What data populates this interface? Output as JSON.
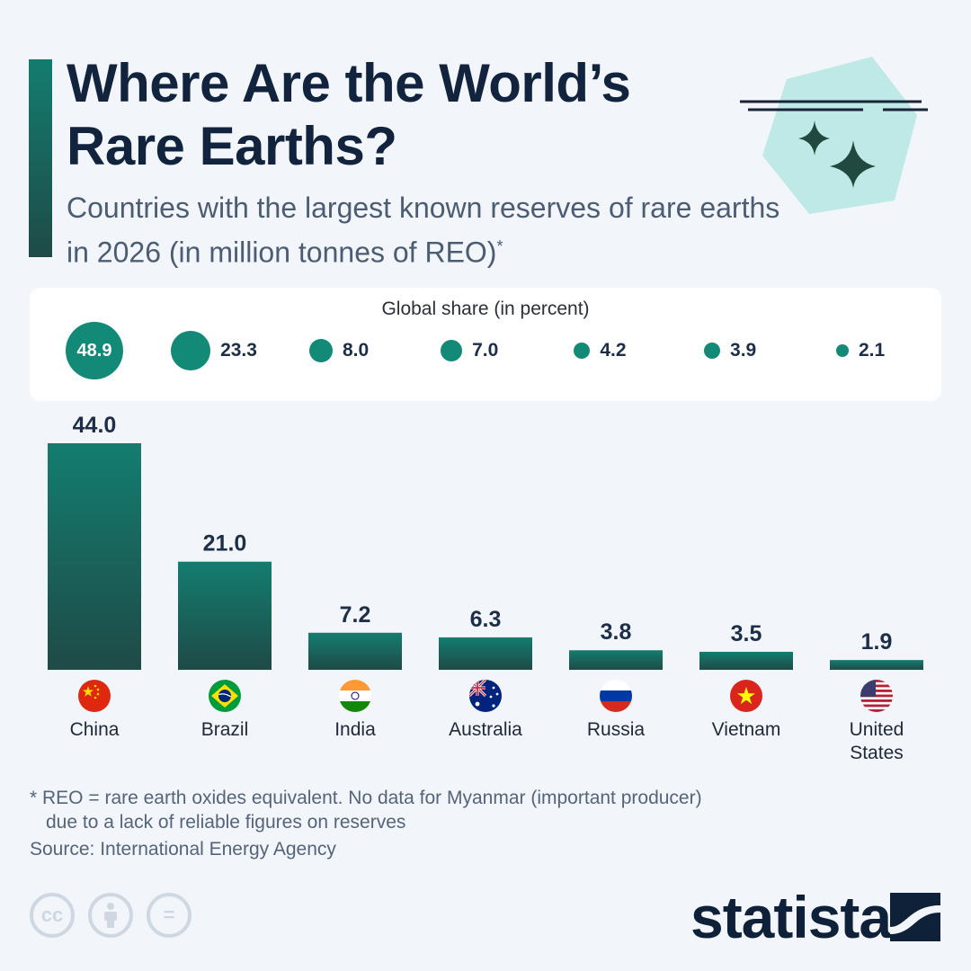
{
  "header": {
    "title": "Where Are the World’s Rare Earths?",
    "subtitle": "Countries with the largest known reserves of rare earths in 2026 (in million tonnes of REO)",
    "subtitle_mark": "*"
  },
  "share_panel": {
    "title": "Global share (in percent)"
  },
  "chart_data": {
    "type": "bar",
    "categories": [
      "China",
      "Brazil",
      "India",
      "Australia",
      "Russia",
      "Vietnam",
      "United States"
    ],
    "values": [
      44.0,
      21.0,
      7.2,
      6.3,
      3.8,
      3.5,
      1.9
    ],
    "value_labels": [
      "44.0",
      "21.0",
      "7.2",
      "6.3",
      "3.8",
      "3.5",
      "1.9"
    ],
    "global_share": [
      48.9,
      23.3,
      8.0,
      7.0,
      4.2,
      3.9,
      2.1
    ],
    "global_share_labels": [
      "48.9",
      "23.3",
      "8.0",
      "7.0",
      "4.2",
      "3.9",
      "2.1"
    ],
    "title": "Where Are the World’s Rare Earths?",
    "xlabel": "",
    "ylabel": "",
    "ylim": [
      0,
      44
    ],
    "grid": false,
    "colors": {
      "bar_top": "#137d6f",
      "bar_bottom": "#1f4a47",
      "dot": "#138a78"
    }
  },
  "flags": [
    "china-flag",
    "brazil-flag",
    "india-flag",
    "australia-flag",
    "russia-flag",
    "vietnam-flag",
    "us-flag"
  ],
  "footer": {
    "footnote_line1": "* REO = rare earth oxides equivalent. No data for Myanmar (important producer)",
    "footnote_line2": "due to a lack of reliable figures on reserves",
    "source": "Source: International Energy Agency",
    "cc_label": "cc",
    "equals_label": "=",
    "brand": "statista"
  },
  "icons": [
    "sparkle-icon",
    "cc-icon",
    "attribution-icon",
    "no-derivatives-icon",
    "statista-logo-icon"
  ]
}
